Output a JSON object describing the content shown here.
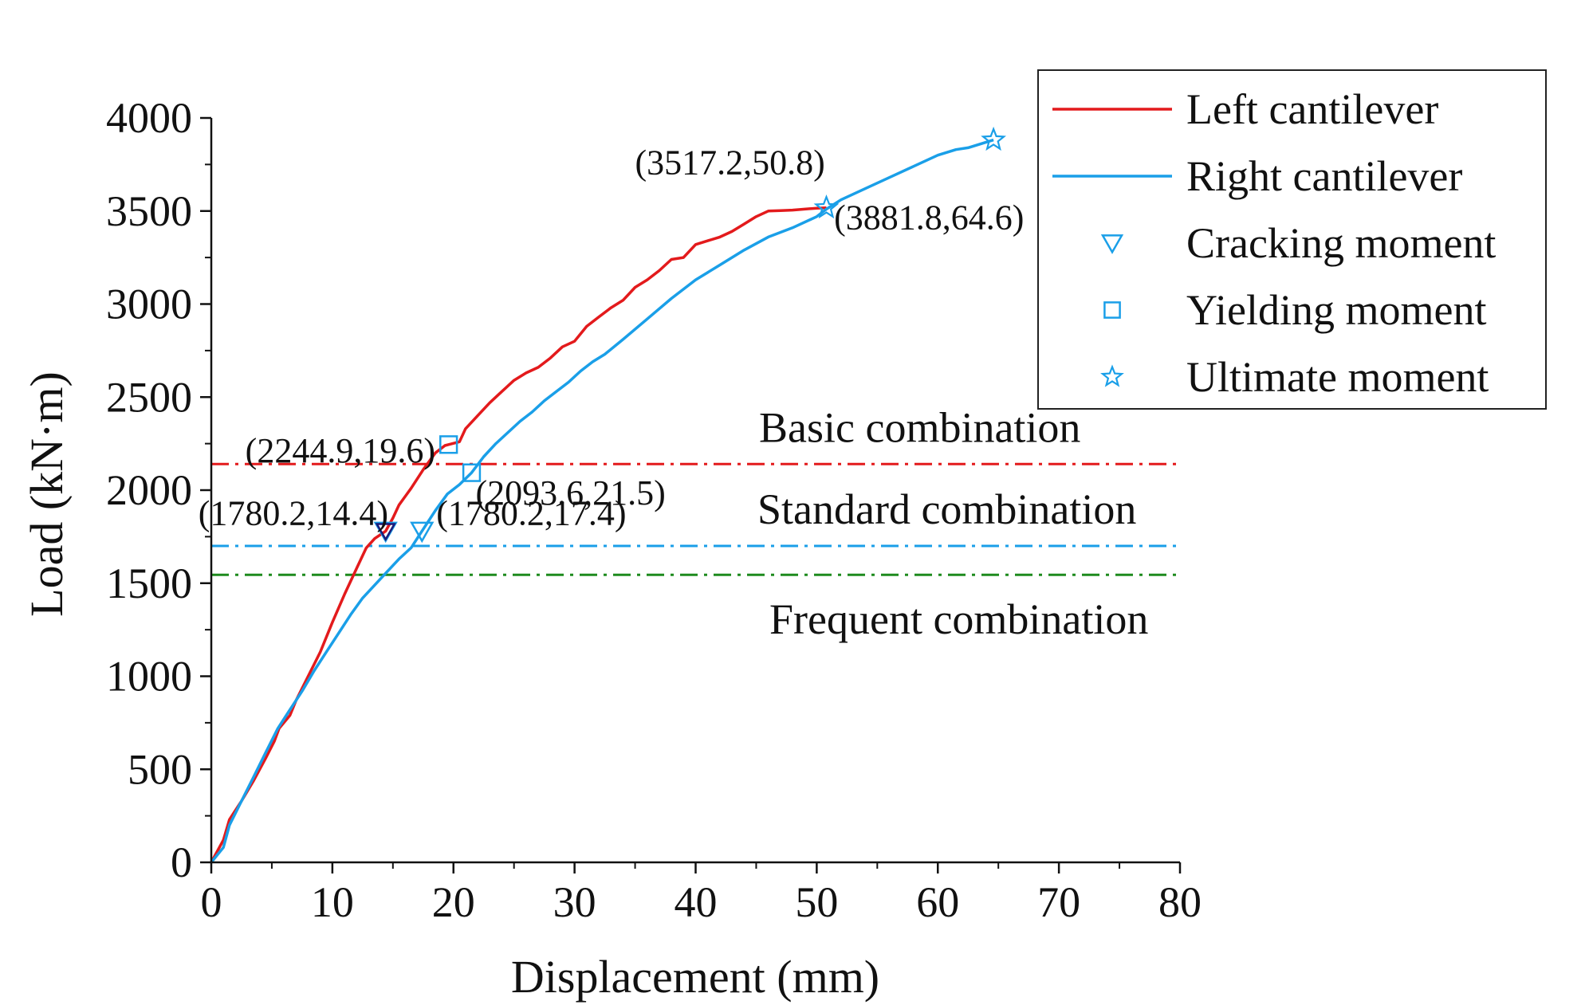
{
  "chart_data": {
    "type": "line",
    "xlabel": "Displacement (mm)",
    "ylabel": "Load (kN·m)",
    "xlim": [
      0,
      80
    ],
    "ylim": [
      0,
      4000
    ],
    "xticks": [
      0,
      10,
      20,
      30,
      40,
      50,
      60,
      70,
      80
    ],
    "yticks": [
      0,
      500,
      1000,
      1500,
      2000,
      2500,
      3000,
      3500,
      4000
    ],
    "grid": false,
    "legend_position": "top-right",
    "series": [
      {
        "name": "Left cantilever",
        "color": "#e31a1c",
        "x": [
          0,
          1,
          1.5,
          2.5,
          3.5,
          4.5,
          5.2,
          5.6,
          6.5,
          7,
          8,
          9,
          10,
          11,
          12,
          12.8,
          13.5,
          14.4,
          15,
          15.5,
          16.5,
          17.5,
          18.5,
          19.3,
          19.6,
          20.5,
          21,
          22,
          23,
          24,
          25,
          26,
          27,
          28,
          29,
          30,
          31,
          32,
          33,
          34,
          35,
          36,
          37,
          38,
          39,
          40,
          41,
          42,
          43,
          44,
          45,
          46,
          47,
          48,
          49,
          50,
          50.8
        ],
        "y": [
          0,
          120,
          230,
          330,
          440,
          560,
          650,
          720,
          790,
          870,
          1000,
          1130,
          1290,
          1440,
          1580,
          1690,
          1740,
          1780,
          1850,
          1920,
          2010,
          2110,
          2200,
          2240,
          2245,
          2260,
          2330,
          2400,
          2470,
          2530,
          2590,
          2630,
          2660,
          2710,
          2770,
          2800,
          2880,
          2930,
          2980,
          3020,
          3090,
          3130,
          3180,
          3240,
          3250,
          3320,
          3340,
          3360,
          3390,
          3430,
          3470,
          3500,
          3502,
          3505,
          3510,
          3515,
          3517.2
        ]
      },
      {
        "name": "Right cantilever",
        "color": "#1a9fe8",
        "x": [
          0,
          1,
          1.5,
          2.5,
          3.5,
          4.5,
          5.5,
          6.5,
          7.5,
          8.5,
          9.5,
          10.5,
          11.5,
          12.5,
          13.5,
          14.5,
          15.5,
          16.5,
          17.4,
          18.5,
          19.5,
          20.5,
          21.5,
          22.5,
          23.5,
          24.5,
          25.5,
          26.5,
          27.5,
          28.5,
          29.5,
          30.5,
          31.5,
          32.5,
          34,
          36,
          38,
          40,
          42,
          44,
          46,
          48,
          50,
          50.8,
          52,
          54,
          56,
          58,
          60,
          61.5,
          62.5,
          64.6
        ],
        "y": [
          0,
          80,
          200,
          330,
          460,
          590,
          720,
          820,
          920,
          1030,
          1130,
          1230,
          1330,
          1420,
          1490,
          1560,
          1630,
          1690,
          1780.2,
          1890,
          1980,
          2030,
          2093.6,
          2180,
          2250,
          2310,
          2370,
          2420,
          2480,
          2530,
          2580,
          2640,
          2690,
          2730,
          2810,
          2920,
          3030,
          3130,
          3210,
          3290,
          3360,
          3410,
          3470,
          3510,
          3560,
          3620,
          3680,
          3740,
          3800,
          3830,
          3840,
          3881.8
        ]
      }
    ],
    "markers": [
      {
        "name": "Cracking moment",
        "symbol": "triangle",
        "points": [
          [
            14.4,
            1780.2
          ],
          [
            17.4,
            1780.2
          ]
        ]
      },
      {
        "name": "Yielding moment",
        "symbol": "square",
        "points": [
          [
            19.6,
            2244.9
          ],
          [
            21.5,
            2093.6
          ]
        ]
      },
      {
        "name": "Ultimate moment",
        "symbol": "star",
        "points": [
          [
            50.8,
            3517.2
          ],
          [
            64.6,
            3881.8
          ]
        ]
      }
    ],
    "reference_lines": [
      {
        "name": "Basic combination",
        "y": 2140,
        "color": "#e31a1c"
      },
      {
        "name": "Standard combination",
        "y": 1700,
        "color": "#1a9fe8"
      },
      {
        "name": "Frequent combination",
        "y": 1545,
        "color": "#1e8a1e"
      }
    ],
    "annotations": [
      {
        "text": "(2244.9,19.6)"
      },
      {
        "text": "(2093.6,21.5)"
      },
      {
        "text": "(1780.2,14.4)"
      },
      {
        "text": "(1780.2,17.4)"
      },
      {
        "text": "(3517.2,50.8)"
      },
      {
        "text": "(3881.8,64.6)"
      }
    ],
    "legend": [
      {
        "label": "Left cantilever",
        "kind": "line",
        "color": "#e31a1c"
      },
      {
        "label": "Right cantilever",
        "kind": "line",
        "color": "#1a9fe8"
      },
      {
        "label": "Cracking moment",
        "kind": "triangle",
        "color": "#1a9fe8"
      },
      {
        "label": "Yielding moment",
        "kind": "square",
        "color": "#1a9fe8"
      },
      {
        "label": "Ultimate moment",
        "kind": "star",
        "color": "#1a9fe8"
      }
    ]
  }
}
